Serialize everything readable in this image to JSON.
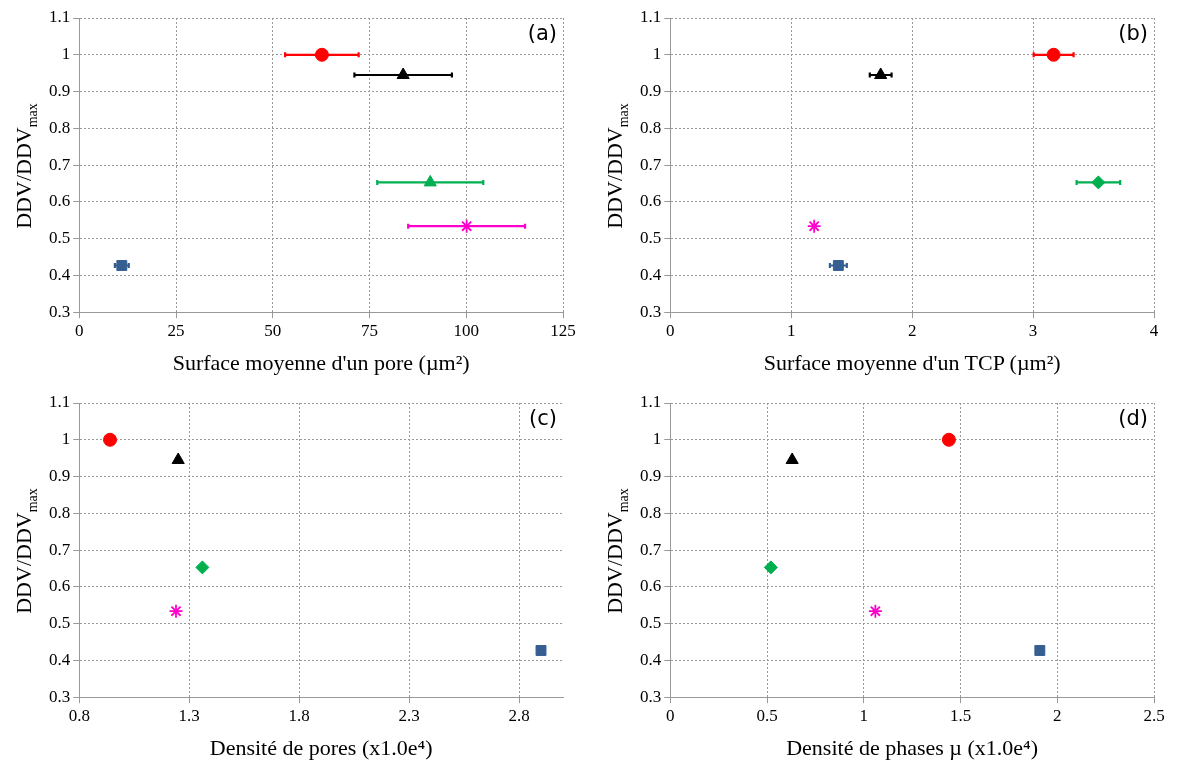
{
  "chart_data": [
    {
      "type": "scatter",
      "xlabel": "Surface moyenne d'un pore (µm²)",
      "ylabel": "DDV/DDV$_{max}$",
      "xlim": [
        0,
        125
      ],
      "xticks": [
        0,
        25,
        50,
        75,
        100,
        125
      ],
      "ylim": [
        0.3,
        1.1
      ],
      "yticks": [
        0.3,
        0.4,
        0.5,
        0.6,
        0.7,
        0.8,
        0.9,
        1,
        1.1
      ],
      "grid": true,
      "annotations": [
        "(a)"
      ],
      "series": [
        {
          "color": "#ff0000",
          "marker": "circle",
          "x": [
            62.7
          ],
          "values": [
            1
          ],
          "xerrors": [
            9.5
          ]
        },
        {
          "color": "#000000",
          "marker": "triangle",
          "x": [
            83.7
          ],
          "values": [
            0.945
          ],
          "xerrors": [
            12.6
          ]
        },
        {
          "color": "#00b050",
          "marker": "triangle",
          "x": [
            90.7
          ],
          "values": [
            0.653
          ],
          "xerrors": [
            13.7
          ]
        },
        {
          "color": "#ff00cc",
          "marker": "cross",
          "x": [
            100.1
          ],
          "values": [
            0.534
          ],
          "xerrors": [
            15.1
          ]
        },
        {
          "color": "#355e91",
          "marker": "square",
          "x": [
            11
          ],
          "values": [
            0.427
          ],
          "xerrors": [
            1.8
          ]
        }
      ]
    },
    {
      "type": "scatter",
      "xlabel": "Surface moyenne d'un TCP (µm²)",
      "ylabel": "DDV/DDV$_{max}$",
      "xlim": [
        0,
        4
      ],
      "xticks": [
        0,
        1,
        2,
        3,
        4
      ],
      "ylim": [
        0.3,
        1.1
      ],
      "yticks": [
        0.3,
        0.4,
        0.5,
        0.6,
        0.7,
        0.8,
        0.9,
        1,
        1.1
      ],
      "grid": true,
      "annotations": [
        "(b)"
      ],
      "series": [
        {
          "color": "#ff0000",
          "marker": "circle",
          "x": [
            3.17
          ],
          "values": [
            1
          ],
          "xerrors": [
            0.165
          ]
        },
        {
          "color": "#000000",
          "marker": "triangle",
          "x": [
            1.74
          ],
          "values": [
            0.945
          ],
          "xerrors": [
            0.09
          ]
        },
        {
          "color": "#00b050",
          "marker": "diamond",
          "x": [
            3.54
          ],
          "values": [
            0.653
          ],
          "xerrors": [
            0.18
          ]
        },
        {
          "color": "#ff00cc",
          "marker": "cross",
          "x": [
            1.19
          ],
          "values": [
            0.534
          ],
          "xerrors": [
            null
          ]
        },
        {
          "color": "#355e91",
          "marker": "square",
          "x": [
            1.39
          ],
          "values": [
            0.427
          ],
          "xerrors": [
            0.07
          ]
        }
      ]
    },
    {
      "type": "scatter",
      "xlabel": "Densité de pores (x1.0e⁴)",
      "ylabel": "DDV/DDV$_{max}$",
      "xlim": [
        0.8,
        3.0
      ],
      "xticks": [
        0.8,
        1.3,
        1.8,
        2.3,
        2.8
      ],
      "ylim": [
        0.3,
        1.1
      ],
      "yticks": [
        0.3,
        0.4,
        0.5,
        0.6,
        0.7,
        0.8,
        0.9,
        1,
        1.1
      ],
      "grid": true,
      "annotations": [
        "(c)"
      ],
      "series": [
        {
          "color": "#ff0000",
          "marker": "circle",
          "x": [
            0.94
          ],
          "values": [
            1
          ]
        },
        {
          "color": "#000000",
          "marker": "triangle",
          "x": [
            1.25
          ],
          "values": [
            0.945
          ]
        },
        {
          "color": "#00b050",
          "marker": "diamond",
          "x": [
            1.36
          ],
          "values": [
            0.653
          ]
        },
        {
          "color": "#ff00cc",
          "marker": "cross",
          "x": [
            1.24
          ],
          "values": [
            0.534
          ]
        },
        {
          "color": "#355e91",
          "marker": "square",
          "x": [
            2.9
          ],
          "values": [
            0.427
          ]
        }
      ]
    },
    {
      "type": "scatter",
      "xlabel": "Densité de phases µ (x1.0e⁴)",
      "ylabel": "DDV/DDV$_{max}$",
      "xlim": [
        0,
        2.5
      ],
      "xticks": [
        0,
        0.5,
        1,
        1.5,
        2,
        2.5
      ],
      "ylim": [
        0.3,
        1.1
      ],
      "yticks": [
        0.3,
        0.4,
        0.5,
        0.6,
        0.7,
        0.8,
        0.9,
        1,
        1.1
      ],
      "grid": true,
      "annotations": [
        "(d)"
      ],
      "series": [
        {
          "color": "#ff0000",
          "marker": "circle",
          "x": [
            1.44
          ],
          "values": [
            1
          ]
        },
        {
          "color": "#000000",
          "marker": "triangle",
          "x": [
            0.63
          ],
          "values": [
            0.945
          ]
        },
        {
          "color": "#00b050",
          "marker": "diamond",
          "x": [
            0.52
          ],
          "values": [
            0.653
          ]
        },
        {
          "color": "#ff00cc",
          "marker": "cross",
          "x": [
            1.06
          ],
          "values": [
            0.534
          ]
        },
        {
          "color": "#355e91",
          "marker": "square",
          "x": [
            1.91
          ],
          "values": [
            0.427
          ]
        }
      ]
    }
  ]
}
